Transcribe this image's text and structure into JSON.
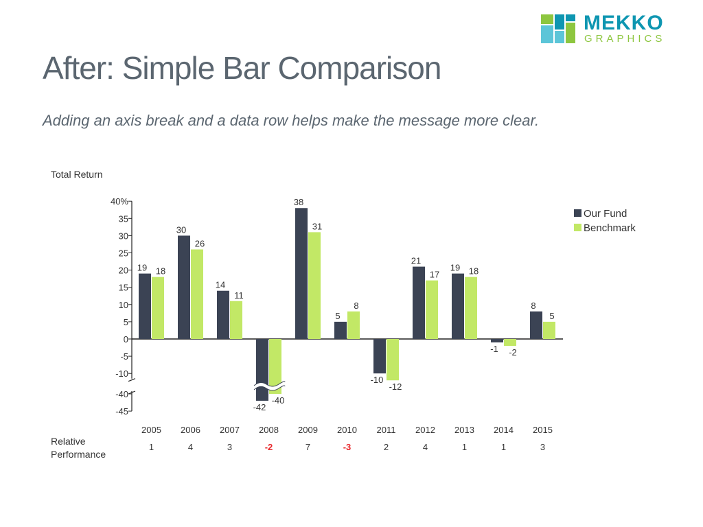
{
  "header": {
    "title": "After: Simple Bar Comparison",
    "subtitle": "Adding an axis break and a data row helps make the message more clear."
  },
  "logo": {
    "word": "MEKKO",
    "sub": "GRAPHICS",
    "colors": [
      "#8dc63f",
      "#0e96b1",
      "#5cc5d8"
    ]
  },
  "chart_data": {
    "type": "bar",
    "ylabel": "Total Return",
    "categories": [
      "2005",
      "2006",
      "2007",
      "2008",
      "2009",
      "2010",
      "2011",
      "2012",
      "2013",
      "2014",
      "2015"
    ],
    "series": [
      {
        "name": "Our Fund",
        "color": "#3b4354",
        "values": [
          19,
          30,
          14,
          -42,
          38,
          5,
          -10,
          21,
          19,
          -1,
          8
        ]
      },
      {
        "name": "Benchmark",
        "color": "#c2e866",
        "values": [
          18,
          26,
          11,
          -40,
          31,
          8,
          -12,
          17,
          18,
          -2,
          5
        ]
      }
    ],
    "y_ticks": [
      "40%",
      "35",
      "30",
      "25",
      "20",
      "15",
      "10",
      "5",
      "0",
      "-5",
      "-10",
      "-40",
      "-45"
    ],
    "ylim": [
      -45,
      40
    ],
    "axis_break": [
      -12,
      -40
    ],
    "legend_position": "top-right",
    "grid": false,
    "data_row": {
      "label": "Relative Performance",
      "values": [
        "1",
        "4",
        "3",
        "-2",
        "7",
        "-3",
        "2",
        "4",
        "1",
        "1",
        "3"
      ],
      "highlight_color": "#e8262a"
    }
  }
}
